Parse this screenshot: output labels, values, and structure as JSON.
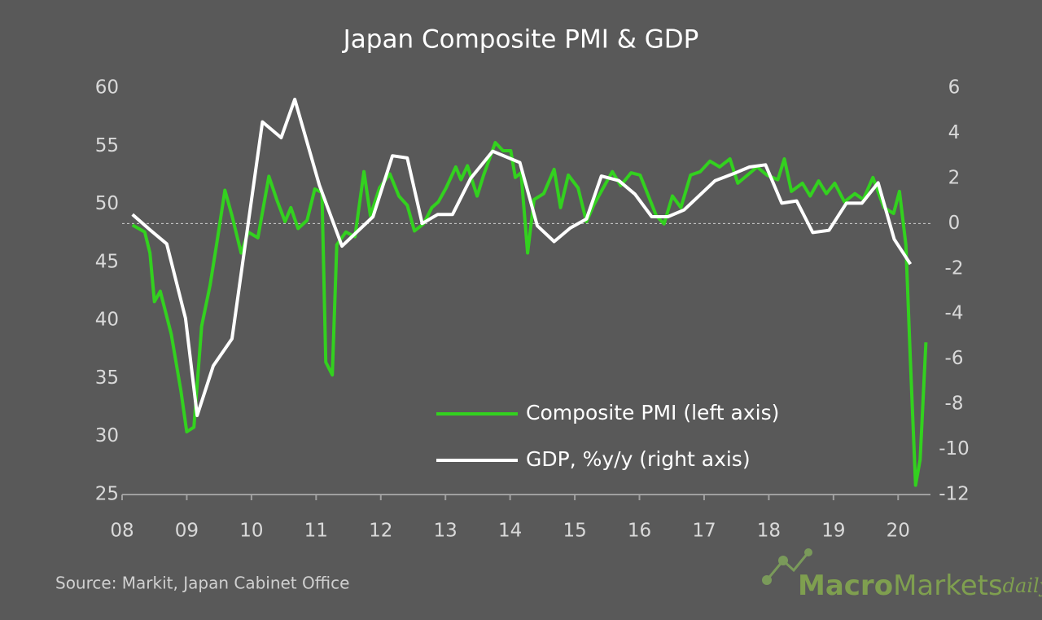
{
  "chart_data": {
    "type": "line",
    "title": "Japan Composite PMI & GDP",
    "source": "Source: Markit, Japan Cabinet Office",
    "logo": [
      "Macro",
      "Markets",
      "daily"
    ],
    "xlim": [
      2008,
      2020.5
    ],
    "xticks": [
      {
        "value": 2008,
        "label": "08"
      },
      {
        "value": 2009,
        "label": "09"
      },
      {
        "value": 2010,
        "label": "10"
      },
      {
        "value": 2011,
        "label": "11"
      },
      {
        "value": 2012,
        "label": "12"
      },
      {
        "value": 2013,
        "label": "13"
      },
      {
        "value": 2014,
        "label": "14"
      },
      {
        "value": 2015,
        "label": "15"
      },
      {
        "value": 2016,
        "label": "16"
      },
      {
        "value": 2017,
        "label": "17"
      },
      {
        "value": 2018,
        "label": "18"
      },
      {
        "value": 2019,
        "label": "19"
      },
      {
        "value": 2020,
        "label": "20"
      }
    ],
    "ylim": [
      25,
      60
    ],
    "yticks": [
      25,
      30,
      35,
      40,
      45,
      50,
      55,
      60
    ],
    "y2lim": [
      -12,
      6
    ],
    "y2ticks": [
      -12,
      -10,
      -8,
      -6,
      -4,
      -2,
      0,
      2,
      4,
      6
    ],
    "y2_reference": 0,
    "series": [
      {
        "name": "Composite PMI (left axis)",
        "color": "#33d11f",
        "axis": "y",
        "x": [
          2008.16,
          2008.35,
          2008.43,
          2008.5,
          2008.59,
          2008.76,
          2008.91,
          2009.0,
          2009.11,
          2009.23,
          2009.36,
          2009.46,
          2009.59,
          2009.7,
          2009.84,
          2009.95,
          2010.1,
          2010.27,
          2010.39,
          2010.52,
          2010.61,
          2010.72,
          2010.86,
          2010.98,
          2011.09,
          2011.15,
          2011.25,
          2011.32,
          2011.46,
          2011.6,
          2011.74,
          2011.84,
          2011.98,
          2012.14,
          2012.28,
          2012.41,
          2012.52,
          2012.66,
          2012.79,
          2012.89,
          2013.01,
          2013.16,
          2013.24,
          2013.34,
          2013.49,
          2013.59,
          2013.77,
          2013.89,
          2014.01,
          2014.08,
          2014.17,
          2014.27,
          2014.37,
          2014.52,
          2014.68,
          2014.78,
          2014.9,
          2015.05,
          2015.18,
          2015.3,
          2015.43,
          2015.58,
          2015.71,
          2015.87,
          2016.01,
          2016.14,
          2016.26,
          2016.38,
          2016.51,
          2016.64,
          2016.79,
          2016.94,
          2017.09,
          2017.24,
          2017.4,
          2017.52,
          2017.67,
          2017.82,
          2017.97,
          2018.14,
          2018.24,
          2018.35,
          2018.52,
          2018.64,
          2018.77,
          2018.89,
          2019.02,
          2019.17,
          2019.33,
          2019.46,
          2019.61,
          2019.78,
          2019.93,
          2020.02,
          2020.12,
          2020.19,
          2020.27,
          2020.34,
          2020.43
        ],
        "values": [
          48.2,
          47.6,
          45.8,
          41.6,
          42.5,
          38.8,
          33.9,
          30.4,
          30.8,
          39.5,
          43,
          46.5,
          51.2,
          49,
          45.8,
          47.6,
          47.1,
          52.4,
          50.4,
          48.5,
          49.7,
          47.9,
          48.6,
          51.3,
          51,
          36.4,
          35.3,
          46.5,
          47.6,
          47.2,
          52.8,
          49,
          51.4,
          52.6,
          50.7,
          49.9,
          47.7,
          48.3,
          49.7,
          50.2,
          51.4,
          53.2,
          52.1,
          53.3,
          50.7,
          52.5,
          55.3,
          54.6,
          54.6,
          52.3,
          52.7,
          45.8,
          50.4,
          50.9,
          53,
          49.7,
          52.5,
          51.4,
          48.5,
          50,
          51.3,
          52.8,
          51.6,
          52.7,
          52.5,
          50.7,
          49,
          48.3,
          50.7,
          49.7,
          52.5,
          52.8,
          53.7,
          53.2,
          53.9,
          51.8,
          52.5,
          53.2,
          52.5,
          52.1,
          53.9,
          51.1,
          51.8,
          50.7,
          52,
          50.9,
          51.8,
          50.2,
          50.9,
          50.4,
          52.3,
          49.7,
          49.2,
          51.1,
          46.5,
          36.4,
          25.8,
          28,
          38.1
        ]
      },
      {
        "name": "GDP, %y/y (right axis)",
        "color": "#ffffff",
        "axis": "y2",
        "x": [
          2008.16,
          2008.44,
          2008.69,
          2008.98,
          2009.16,
          2009.41,
          2009.7,
          2010.17,
          2010.46,
          2010.67,
          2011.05,
          2011.4,
          2011.88,
          2012.18,
          2012.41,
          2012.64,
          2012.88,
          2013.11,
          2013.39,
          2013.73,
          2014.15,
          2014.42,
          2014.68,
          2014.93,
          2015.18,
          2015.41,
          2015.68,
          2015.93,
          2016.19,
          2016.44,
          2016.69,
          2017.17,
          2017.45,
          2017.7,
          2017.95,
          2018.2,
          2018.43,
          2018.68,
          2018.93,
          2019.2,
          2019.44,
          2019.69,
          2019.94,
          2020.19
        ],
        "values": [
          0.4,
          -0.3,
          -0.9,
          -4.2,
          -8.5,
          -6.3,
          -5.1,
          4.5,
          3.8,
          5.5,
          1.7,
          -1,
          0.3,
          3,
          2.9,
          0,
          0.4,
          0.4,
          2,
          3.2,
          2.7,
          -0.1,
          -0.8,
          -0.2,
          0.2,
          2.1,
          1.9,
          1.3,
          0.3,
          0.3,
          0.6,
          1.9,
          2.2,
          2.5,
          2.6,
          0.9,
          1,
          -0.4,
          -0.3,
          0.9,
          0.9,
          1.8,
          -0.7,
          -1.8
        ]
      }
    ]
  }
}
